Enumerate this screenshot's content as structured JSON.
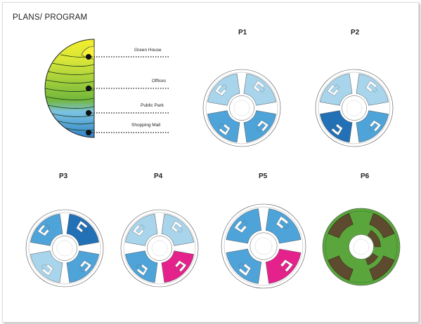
{
  "page": {
    "title": "PLANS/ PROGRAM"
  },
  "program": {
    "items": [
      {
        "label": "Green House",
        "color": "#f2ee2e"
      },
      {
        "label": "Offices",
        "color": "#8cc63f"
      },
      {
        "label": "Public Park",
        "color": "#4fae32"
      },
      {
        "label": "Shopping Mall",
        "color": "#6fb9e4"
      }
    ]
  },
  "plans": [
    {
      "label": "P1",
      "scheme": "offices-light"
    },
    {
      "label": "P2",
      "scheme": "offices-dark"
    },
    {
      "label": "P3",
      "scheme": "offices-mixed"
    },
    {
      "label": "P4",
      "scheme": "offices-magenta"
    },
    {
      "label": "P5",
      "scheme": "offices-magenta-half"
    },
    {
      "label": "P6",
      "scheme": "park"
    }
  ],
  "colors": {
    "light_blue": "#a8d5ec",
    "mid_blue": "#4ea3d9",
    "dark_blue": "#2270b5",
    "magenta": "#e5228c",
    "park_green": "#5aa63d",
    "park_brown": "#5e4a2e",
    "yellow": "#f2ee2e"
  }
}
